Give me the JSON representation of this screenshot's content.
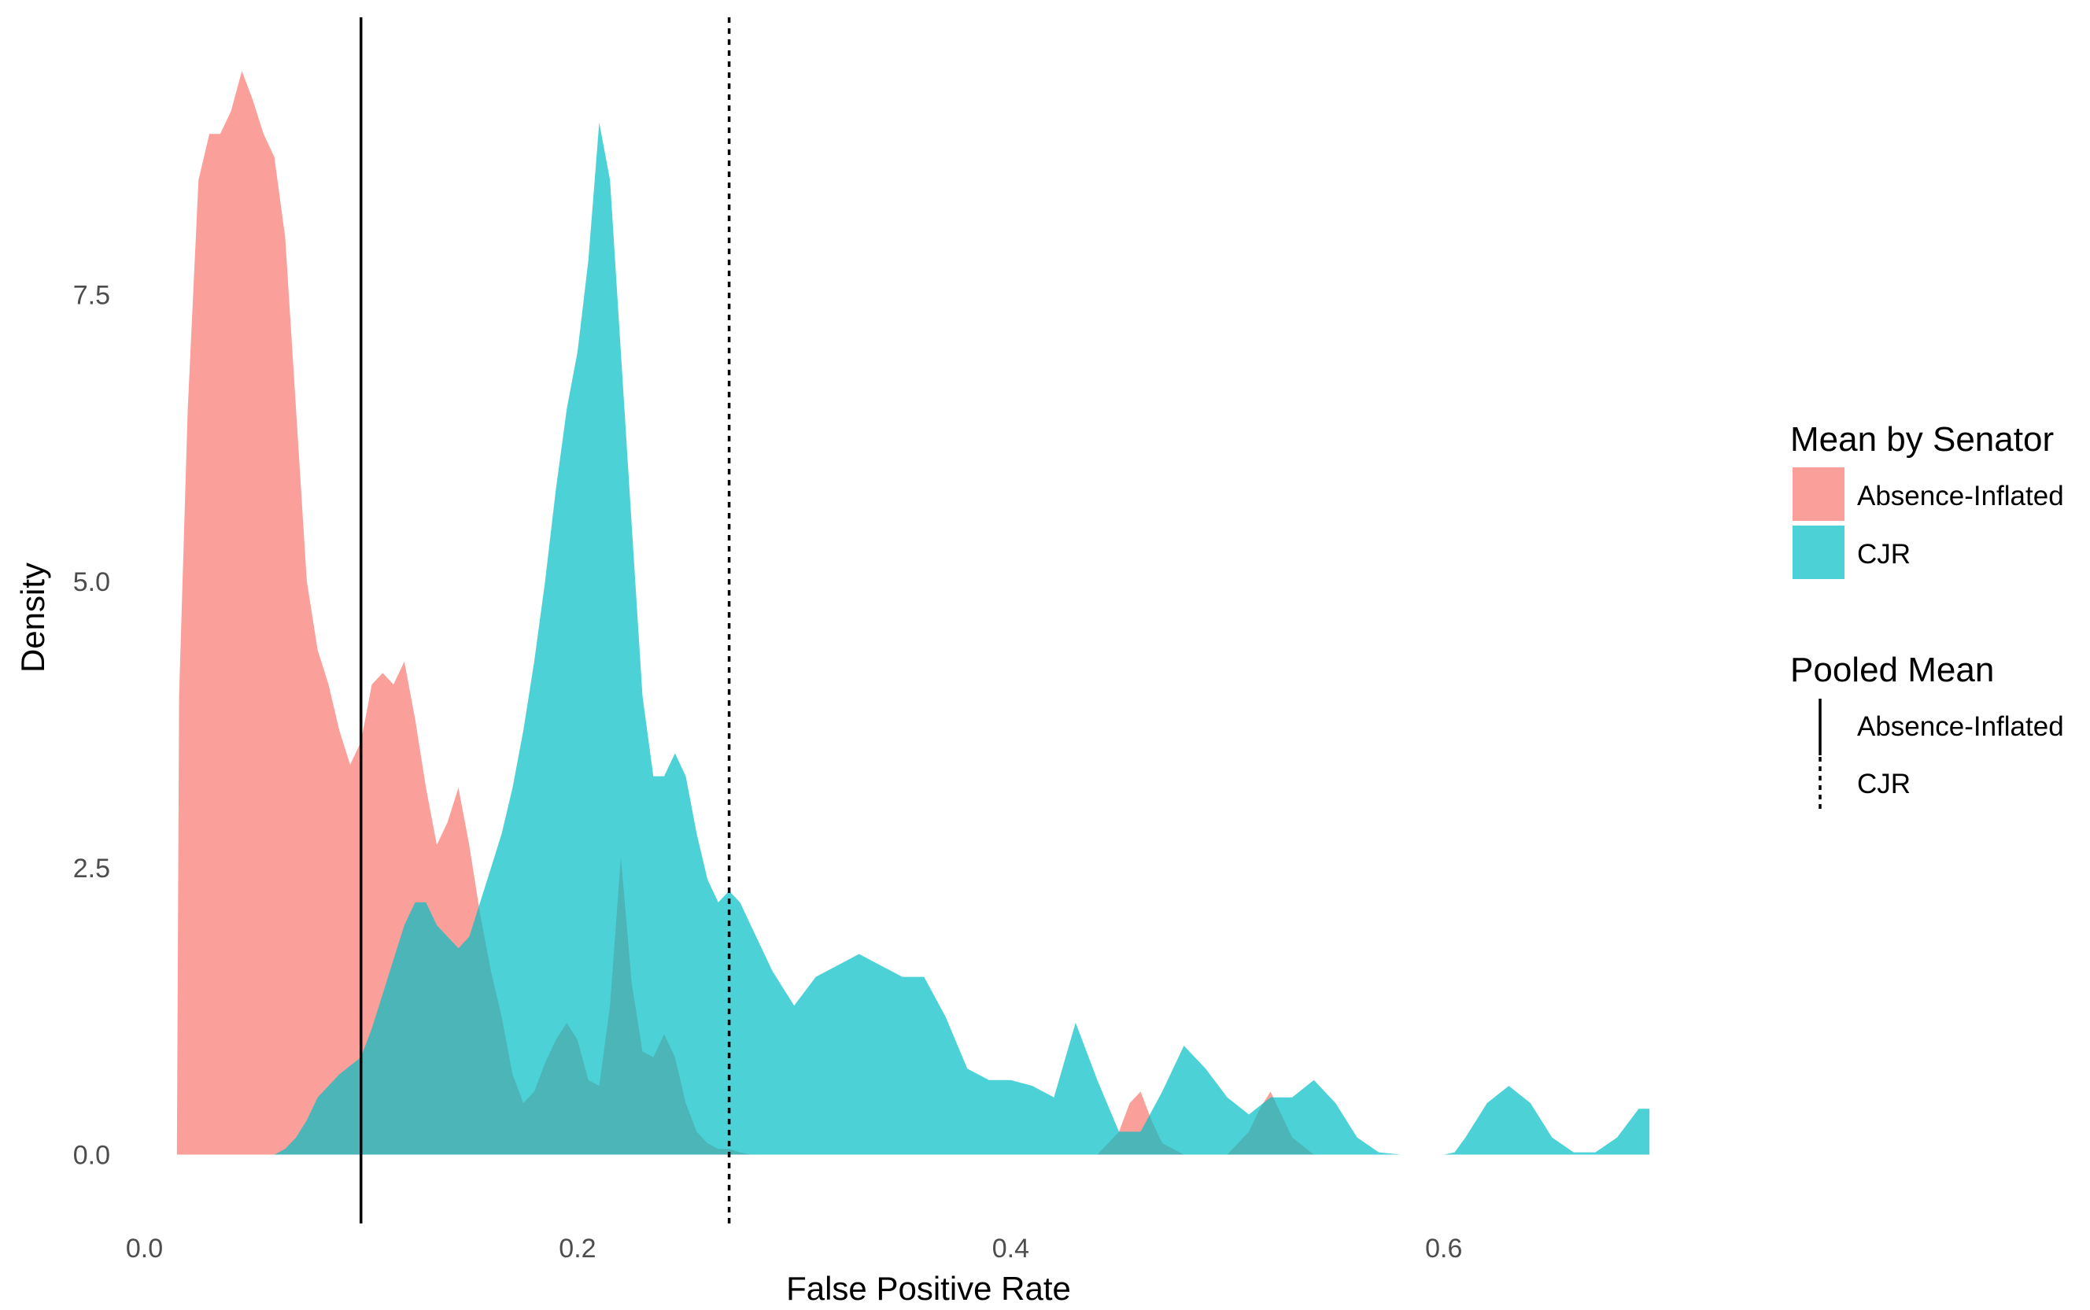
{
  "chart_data": {
    "type": "area",
    "xlabel": "False Positive Rate",
    "ylabel": "Density",
    "xlim": [
      -0.01,
      0.7
    ],
    "ylim": [
      -0.6,
      10.0
    ],
    "x_ticks": [
      0.0,
      0.2,
      0.4,
      0.6
    ],
    "x_tick_labels": [
      "0.0",
      "0.2",
      "0.4",
      "0.6"
    ],
    "y_ticks": [
      0.0,
      2.5,
      5.0,
      7.5
    ],
    "y_tick_labels": [
      "0.0",
      "2.5",
      "5.0",
      "7.5"
    ],
    "grid": false,
    "legend_position": "right",
    "legend": {
      "fill_title": "Mean by Senator",
      "line_title": "Pooled Mean"
    },
    "series": [
      {
        "name": "Absence-Inflated",
        "color": "#f8766d",
        "opacity": 0.7,
        "x": [
          0.015,
          0.016,
          0.02,
          0.025,
          0.03,
          0.035,
          0.04,
          0.045,
          0.05,
          0.055,
          0.06,
          0.065,
          0.07,
          0.075,
          0.08,
          0.085,
          0.09,
          0.095,
          0.1,
          0.105,
          0.11,
          0.115,
          0.12,
          0.125,
          0.13,
          0.135,
          0.14,
          0.145,
          0.15,
          0.155,
          0.16,
          0.165,
          0.17,
          0.175,
          0.18,
          0.185,
          0.19,
          0.195,
          0.2,
          0.205,
          0.21,
          0.215,
          0.22,
          0.225,
          0.23,
          0.235,
          0.24,
          0.245,
          0.25,
          0.255,
          0.26,
          0.265,
          0.27,
          0.275,
          0.28,
          0.29,
          0.3,
          0.35,
          0.4,
          0.44,
          0.45,
          0.455,
          0.46,
          0.465,
          0.47,
          0.48,
          0.5,
          0.51,
          0.515,
          0.52,
          0.525,
          0.53,
          0.54
        ],
        "y": [
          0.0,
          4.0,
          6.5,
          8.5,
          8.9,
          8.9,
          9.1,
          9.45,
          9.2,
          8.9,
          8.7,
          8.0,
          6.5,
          5.0,
          4.4,
          4.1,
          3.7,
          3.4,
          3.6,
          4.1,
          4.2,
          4.1,
          4.3,
          3.8,
          3.2,
          2.7,
          2.9,
          3.2,
          2.7,
          2.1,
          1.6,
          1.2,
          0.7,
          0.45,
          0.55,
          0.8,
          1.0,
          1.15,
          1.0,
          0.65,
          0.6,
          1.3,
          2.6,
          1.5,
          0.9,
          0.85,
          1.05,
          0.85,
          0.45,
          0.2,
          0.1,
          0.05,
          0.05,
          0.02,
          0.0,
          0.0,
          0.0,
          0.0,
          0.0,
          0.0,
          0.2,
          0.45,
          0.55,
          0.3,
          0.1,
          0.0,
          0.0,
          0.2,
          0.4,
          0.55,
          0.35,
          0.15,
          0.0
        ]
      },
      {
        "name": "CJR",
        "color": "#00bfc4",
        "opacity": 0.7,
        "x": [
          0.06,
          0.065,
          0.07,
          0.075,
          0.08,
          0.09,
          0.1,
          0.105,
          0.11,
          0.115,
          0.12,
          0.125,
          0.13,
          0.135,
          0.14,
          0.145,
          0.15,
          0.155,
          0.16,
          0.165,
          0.17,
          0.175,
          0.18,
          0.185,
          0.19,
          0.195,
          0.2,
          0.205,
          0.21,
          0.215,
          0.22,
          0.225,
          0.23,
          0.235,
          0.24,
          0.245,
          0.25,
          0.255,
          0.26,
          0.265,
          0.27,
          0.275,
          0.28,
          0.29,
          0.3,
          0.31,
          0.32,
          0.33,
          0.34,
          0.35,
          0.36,
          0.37,
          0.38,
          0.39,
          0.4,
          0.41,
          0.42,
          0.43,
          0.44,
          0.45,
          0.46,
          0.47,
          0.48,
          0.49,
          0.5,
          0.51,
          0.52,
          0.53,
          0.54,
          0.55,
          0.56,
          0.57,
          0.58,
          0.585,
          0.6,
          0.605,
          0.61,
          0.62,
          0.63,
          0.64,
          0.65,
          0.66,
          0.67,
          0.68,
          0.69,
          0.695
        ],
        "y": [
          0.0,
          0.05,
          0.15,
          0.3,
          0.5,
          0.7,
          0.85,
          1.1,
          1.4,
          1.7,
          2.0,
          2.2,
          2.2,
          2.0,
          1.9,
          1.8,
          1.9,
          2.2,
          2.5,
          2.8,
          3.2,
          3.7,
          4.3,
          5.0,
          5.8,
          6.5,
          7.0,
          7.8,
          9.0,
          8.5,
          7.0,
          5.5,
          4.0,
          3.3,
          3.3,
          3.5,
          3.3,
          2.8,
          2.4,
          2.2,
          2.3,
          2.2,
          2.0,
          1.6,
          1.3,
          1.55,
          1.65,
          1.75,
          1.65,
          1.55,
          1.55,
          1.2,
          0.75,
          0.65,
          0.65,
          0.6,
          0.5,
          1.15,
          0.65,
          0.2,
          0.2,
          0.55,
          0.95,
          0.75,
          0.5,
          0.35,
          0.5,
          0.5,
          0.65,
          0.45,
          0.15,
          0.02,
          0.0,
          0.0,
          0.0,
          0.02,
          0.15,
          0.45,
          0.6,
          0.45,
          0.15,
          0.02,
          0.02,
          0.15,
          0.4,
          0.4
        ]
      }
    ],
    "vlines": [
      {
        "name": "Absence-Inflated",
        "x": 0.1,
        "style": "solid",
        "color": "#000000"
      },
      {
        "name": "CJR",
        "x": 0.27,
        "style": "dotted",
        "color": "#000000"
      }
    ]
  }
}
